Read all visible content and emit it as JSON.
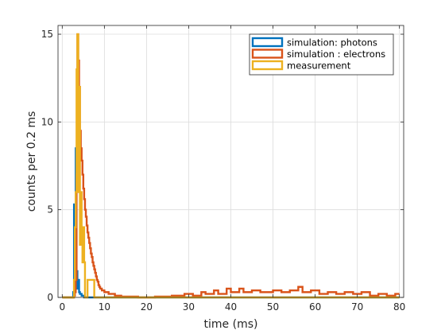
{
  "chart_data": {
    "type": "histogram-stairs",
    "xlabel": "time (ms)",
    "ylabel": "counts per 0.2 ms",
    "xlim": [
      -1,
      81
    ],
    "ylim": [
      0,
      15.5
    ],
    "xticks": [
      0,
      10,
      20,
      30,
      40,
      50,
      60,
      70,
      80
    ],
    "yticks": [
      0,
      5,
      10,
      15
    ],
    "grid": true,
    "legend_position": "top-right",
    "bin_width": 0.2,
    "series": [
      {
        "name": "simulation: photons",
        "color": "#0072BD",
        "points": [
          [
            0,
            0
          ],
          [
            2.6,
            0
          ],
          [
            2.6,
            0.3
          ],
          [
            2.8,
            0.3
          ],
          [
            2.8,
            5.3
          ],
          [
            3.0,
            5.3
          ],
          [
            3.0,
            3.0
          ],
          [
            3.2,
            3.0
          ],
          [
            3.2,
            8.5
          ],
          [
            3.4,
            8.5
          ],
          [
            3.4,
            1.5
          ],
          [
            3.6,
            1.5
          ],
          [
            3.6,
            0.5
          ],
          [
            3.8,
            0.5
          ],
          [
            3.8,
            1.0
          ],
          [
            4.0,
            1.0
          ],
          [
            4.0,
            0.3
          ],
          [
            4.2,
            0.3
          ],
          [
            4.2,
            0.2
          ],
          [
            4.6,
            0.2
          ],
          [
            4.6,
            0.1
          ],
          [
            5.2,
            0.1
          ],
          [
            5.2,
            0
          ],
          [
            80,
            0
          ]
        ]
      },
      {
        "name": "simulation : electrons",
        "color": "#D95319",
        "points": [
          [
            0,
            0
          ],
          [
            2.8,
            0
          ],
          [
            2.8,
            0.1
          ],
          [
            3.0,
            0.1
          ],
          [
            3.0,
            0.3
          ],
          [
            3.2,
            0.3
          ],
          [
            3.2,
            1.0
          ],
          [
            3.4,
            1.0
          ],
          [
            3.4,
            7.0
          ],
          [
            3.6,
            7.0
          ],
          [
            3.6,
            15.0
          ],
          [
            3.8,
            15.0
          ],
          [
            3.8,
            13.5
          ],
          [
            4.0,
            13.5
          ],
          [
            4.0,
            12.0
          ],
          [
            4.2,
            12.0
          ],
          [
            4.2,
            9.5
          ],
          [
            4.4,
            9.5
          ],
          [
            4.4,
            8.5
          ],
          [
            4.6,
            8.5
          ],
          [
            4.6,
            7.8
          ],
          [
            4.8,
            7.8
          ],
          [
            4.8,
            7.0
          ],
          [
            5.0,
            7.0
          ],
          [
            5.0,
            6.2
          ],
          [
            5.2,
            6.2
          ],
          [
            5.2,
            5.6
          ],
          [
            5.4,
            5.6
          ],
          [
            5.4,
            5.0
          ],
          [
            5.6,
            5.0
          ],
          [
            5.6,
            4.6
          ],
          [
            5.8,
            4.6
          ],
          [
            5.8,
            4.1
          ],
          [
            6.0,
            4.1
          ],
          [
            6.0,
            3.7
          ],
          [
            6.2,
            3.7
          ],
          [
            6.2,
            3.4
          ],
          [
            6.4,
            3.4
          ],
          [
            6.4,
            3.1
          ],
          [
            6.6,
            3.1
          ],
          [
            6.6,
            2.8
          ],
          [
            6.8,
            2.8
          ],
          [
            6.8,
            2.5
          ],
          [
            7.0,
            2.5
          ],
          [
            7.0,
            2.3
          ],
          [
            7.2,
            2.3
          ],
          [
            7.2,
            2.0
          ],
          [
            7.4,
            2.0
          ],
          [
            7.4,
            1.8
          ],
          [
            7.6,
            1.8
          ],
          [
            7.6,
            1.6
          ],
          [
            7.8,
            1.6
          ],
          [
            7.8,
            1.4
          ],
          [
            8.0,
            1.4
          ],
          [
            8.0,
            1.2
          ],
          [
            8.2,
            1.2
          ],
          [
            8.2,
            1.0
          ],
          [
            8.4,
            1.0
          ],
          [
            8.4,
            0.9
          ],
          [
            8.6,
            0.9
          ],
          [
            8.6,
            0.7
          ],
          [
            8.8,
            0.7
          ],
          [
            8.8,
            0.6
          ],
          [
            9.0,
            0.6
          ],
          [
            9.0,
            0.5
          ],
          [
            9.4,
            0.5
          ],
          [
            9.4,
            0.4
          ],
          [
            10.0,
            0.4
          ],
          [
            10.0,
            0.3
          ],
          [
            11.0,
            0.3
          ],
          [
            11.0,
            0.2
          ],
          [
            12.5,
            0.2
          ],
          [
            12.5,
            0.1
          ],
          [
            14.0,
            0.1
          ],
          [
            14.0,
            0.05
          ],
          [
            18.0,
            0.05
          ],
          [
            18.0,
            0
          ],
          [
            22.0,
            0
          ],
          [
            22.0,
            0.05
          ],
          [
            26.0,
            0.05
          ],
          [
            26.0,
            0.1
          ],
          [
            29.0,
            0.1
          ],
          [
            29.0,
            0.2
          ],
          [
            31.0,
            0.2
          ],
          [
            31.0,
            0.1
          ],
          [
            33.0,
            0.1
          ],
          [
            33.0,
            0.3
          ],
          [
            34.0,
            0.3
          ],
          [
            34.0,
            0.2
          ],
          [
            36.0,
            0.2
          ],
          [
            36.0,
            0.4
          ],
          [
            37.0,
            0.4
          ],
          [
            37.0,
            0.2
          ],
          [
            39.0,
            0.2
          ],
          [
            39.0,
            0.5
          ],
          [
            40.0,
            0.5
          ],
          [
            40.0,
            0.3
          ],
          [
            42.0,
            0.3
          ],
          [
            42.0,
            0.5
          ],
          [
            43.0,
            0.5
          ],
          [
            43.0,
            0.3
          ],
          [
            45.0,
            0.3
          ],
          [
            45.0,
            0.4
          ],
          [
            47.0,
            0.4
          ],
          [
            47.0,
            0.3
          ],
          [
            50.0,
            0.3
          ],
          [
            50.0,
            0.4
          ],
          [
            52.0,
            0.4
          ],
          [
            52.0,
            0.3
          ],
          [
            54.0,
            0.3
          ],
          [
            54.0,
            0.4
          ],
          [
            56.0,
            0.4
          ],
          [
            56.0,
            0.6
          ],
          [
            57.0,
            0.6
          ],
          [
            57.0,
            0.3
          ],
          [
            59.0,
            0.3
          ],
          [
            59.0,
            0.4
          ],
          [
            61.0,
            0.4
          ],
          [
            61.0,
            0.2
          ],
          [
            63.0,
            0.2
          ],
          [
            63.0,
            0.3
          ],
          [
            65.0,
            0.3
          ],
          [
            65.0,
            0.2
          ],
          [
            67.0,
            0.2
          ],
          [
            67.0,
            0.3
          ],
          [
            69.0,
            0.3
          ],
          [
            69.0,
            0.2
          ],
          [
            71.0,
            0.2
          ],
          [
            71.0,
            0.3
          ],
          [
            73.0,
            0.3
          ],
          [
            73.0,
            0.1
          ],
          [
            75.0,
            0.1
          ],
          [
            75.0,
            0.2
          ],
          [
            77.0,
            0.2
          ],
          [
            77.0,
            0.1
          ],
          [
            79.0,
            0.1
          ],
          [
            79.0,
            0.2
          ],
          [
            80,
            0.2
          ]
        ]
      },
      {
        "name": "measurement",
        "color": "#EDB120",
        "points": [
          [
            0,
            0
          ],
          [
            2.8,
            0
          ],
          [
            2.8,
            1.0
          ],
          [
            3.0,
            1.0
          ],
          [
            3.0,
            4.0
          ],
          [
            3.2,
            4.0
          ],
          [
            3.2,
            6.0
          ],
          [
            3.4,
            6.0
          ],
          [
            3.4,
            13.0
          ],
          [
            3.6,
            13.0
          ],
          [
            3.6,
            15.0
          ],
          [
            3.8,
            15.0
          ],
          [
            3.8,
            6.0
          ],
          [
            4.0,
            6.0
          ],
          [
            4.0,
            12.0
          ],
          [
            4.2,
            12.0
          ],
          [
            4.2,
            3.0
          ],
          [
            4.4,
            3.0
          ],
          [
            4.4,
            6.0
          ],
          [
            4.6,
            6.0
          ],
          [
            4.6,
            3.0
          ],
          [
            4.8,
            3.0
          ],
          [
            4.8,
            2.0
          ],
          [
            5.0,
            2.0
          ],
          [
            5.0,
            4.0
          ],
          [
            5.2,
            4.0
          ],
          [
            5.2,
            2.0
          ],
          [
            5.4,
            2.0
          ],
          [
            5.4,
            0
          ],
          [
            6.0,
            0
          ],
          [
            6.0,
            1.0
          ],
          [
            7.6,
            1.0
          ],
          [
            7.6,
            0
          ],
          [
            80,
            0
          ]
        ]
      }
    ]
  }
}
